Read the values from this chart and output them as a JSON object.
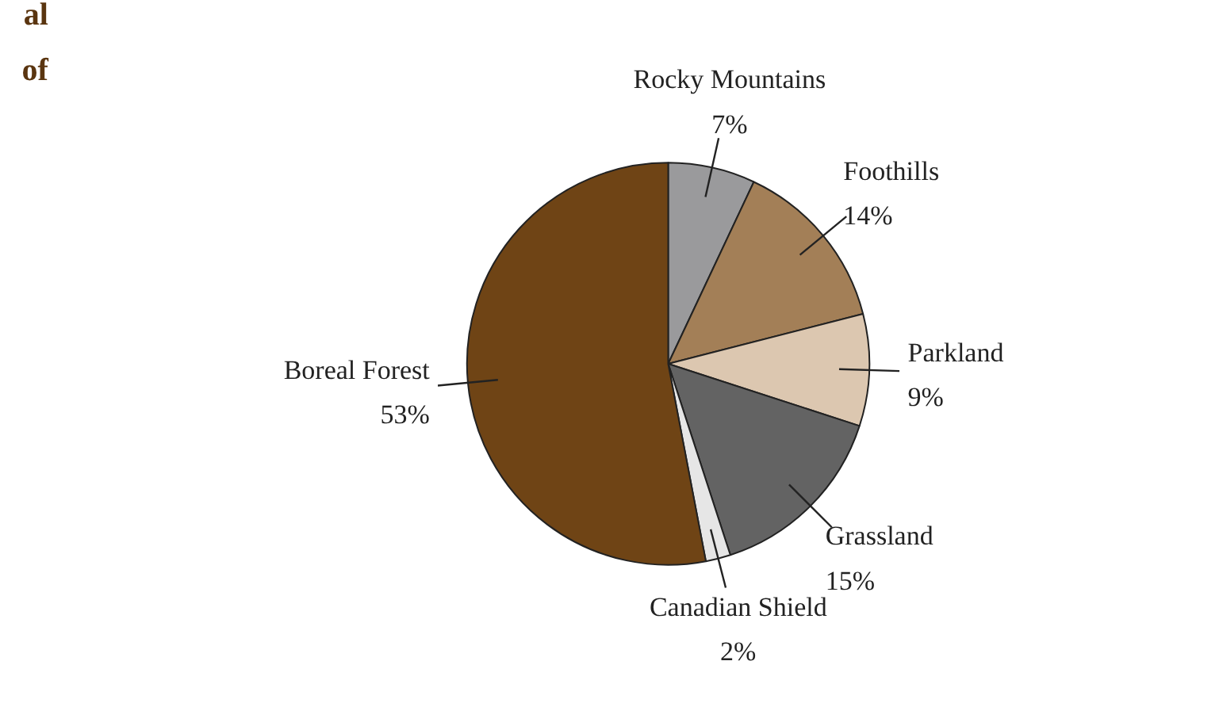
{
  "chart_data": {
    "type": "pie",
    "categories": [
      "Rocky Mountains",
      "Foothills",
      "Parkland",
      "Grassland",
      "Canadian Shield",
      "Boreal Forest"
    ],
    "values": [
      7,
      14,
      9,
      15,
      2,
      53
    ],
    "value_labels": [
      "7%",
      "14%",
      "9%",
      "15%",
      "2%",
      "53%"
    ],
    "colors": [
      "#9a9a9c",
      "#a37f57",
      "#dcc7b0",
      "#636363",
      "#e6e6e6",
      "#6f4415"
    ],
    "annotations": [
      "al",
      "of"
    ]
  }
}
